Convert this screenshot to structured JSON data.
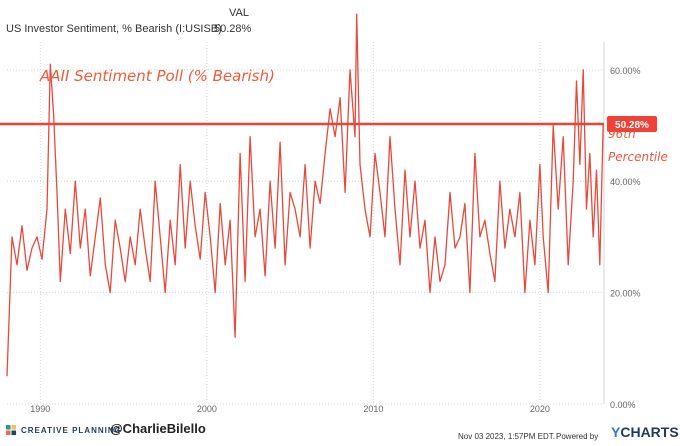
{
  "header": {
    "column_label": "VAL",
    "series_name": "US Investor Sentiment, % Bearish (I:USISB)",
    "series_value": "50.28%"
  },
  "annotations": {
    "title": "AAII Sentiment Poll (% Bearish)",
    "percentile_line1": "96th",
    "percentile_line2": "Percentile",
    "last_value_badge": "50.28%"
  },
  "footer": {
    "brand": "CREATIVE PLANNING",
    "handle": "@CharlieBilello",
    "timestamp": "Nov 03 2023, 1:57PM EDT.",
    "powered_by": "Powered by",
    "provider": "YCHARTS"
  },
  "colors": {
    "series": "#e8493b",
    "annotation": "#f05a3c",
    "grid": "#d6d6d6",
    "axis_text": "#666666",
    "badge_bg": "#ef4136",
    "badge_text": "#ffffff"
  },
  "icons": {
    "brand_logo": "creative-planning-logo-icon"
  },
  "chart_data": {
    "type": "line",
    "title": "AAII Sentiment Poll (% Bearish)",
    "xlabel": "",
    "ylabel": "",
    "xlim": [
      1988.0,
      2023.85
    ],
    "ylim": [
      0,
      65
    ],
    "x_ticks": [
      1990,
      2000,
      2010,
      2020
    ],
    "x_tick_labels": [
      "1990",
      "2000",
      "2010",
      "2020"
    ],
    "y_ticks": [
      0,
      20,
      40,
      60
    ],
    "y_tick_labels": [
      "0.00%",
      "20.00%",
      "40.00%",
      "60.00%"
    ],
    "grid": true,
    "reference_line": {
      "value": 50.28,
      "label": "96th Percentile"
    },
    "last_value": 50.28,
    "series": [
      {
        "name": "US Investor Sentiment, % Bearish",
        "x": [
          1988.0,
          1988.3,
          1988.6,
          1988.9,
          1989.2,
          1989.5,
          1989.8,
          1990.1,
          1990.4,
          1990.6,
          1990.8,
          1991.0,
          1991.2,
          1991.5,
          1991.8,
          1992.1,
          1992.4,
          1992.7,
          1993.0,
          1993.3,
          1993.6,
          1993.9,
          1994.2,
          1994.5,
          1994.8,
          1995.1,
          1995.4,
          1995.7,
          1996.0,
          1996.3,
          1996.6,
          1996.9,
          1997.2,
          1997.5,
          1997.8,
          1998.1,
          1998.4,
          1998.7,
          1999.0,
          1999.3,
          1999.6,
          1999.9,
          2000.2,
          2000.5,
          2000.8,
          2001.1,
          2001.4,
          2001.7,
          2002.0,
          2002.3,
          2002.6,
          2002.9,
          2003.2,
          2003.5,
          2003.8,
          2004.1,
          2004.4,
          2004.7,
          2005.0,
          2005.3,
          2005.6,
          2005.9,
          2006.2,
          2006.5,
          2006.8,
          2007.1,
          2007.4,
          2007.7,
          2008.0,
          2008.3,
          2008.6,
          2008.9,
          2009.0,
          2009.2,
          2009.5,
          2009.8,
          2010.1,
          2010.4,
          2010.7,
          2011.0,
          2011.3,
          2011.6,
          2011.9,
          2012.2,
          2012.5,
          2012.8,
          2013.1,
          2013.4,
          2013.7,
          2014.0,
          2014.3,
          2014.6,
          2014.9,
          2015.2,
          2015.5,
          2015.8,
          2016.1,
          2016.4,
          2016.7,
          2017.0,
          2017.3,
          2017.6,
          2017.9,
          2018.2,
          2018.5,
          2018.8,
          2019.1,
          2019.4,
          2019.7,
          2020.0,
          2020.2,
          2020.5,
          2020.8,
          2021.1,
          2021.4,
          2021.7,
          2022.0,
          2022.2,
          2022.4,
          2022.6,
          2022.8,
          2023.0,
          2023.2,
          2023.4,
          2023.6,
          2023.8
        ],
        "values": [
          5,
          30,
          25,
          32,
          24,
          28,
          30,
          26,
          35,
          61,
          52,
          38,
          22,
          35,
          27,
          40,
          28,
          35,
          23,
          30,
          37,
          25,
          20,
          33,
          28,
          22,
          30,
          25,
          35,
          28,
          22,
          40,
          30,
          20,
          33,
          25,
          43,
          28,
          40,
          32,
          26,
          38,
          30,
          20,
          36,
          25,
          33,
          12,
          45,
          22,
          48,
          30,
          35,
          23,
          40,
          28,
          47,
          25,
          38,
          35,
          30,
          43,
          28,
          40,
          36,
          45,
          53,
          48,
          55,
          38,
          60,
          48,
          70,
          43,
          35,
          30,
          45,
          38,
          30,
          48,
          35,
          25,
          42,
          30,
          40,
          28,
          33,
          20,
          30,
          22,
          25,
          38,
          28,
          30,
          36,
          20,
          45,
          30,
          33,
          27,
          22,
          40,
          28,
          35,
          30,
          38,
          20,
          33,
          25,
          43,
          30,
          20,
          50,
          35,
          48,
          25,
          40,
          58,
          43,
          60,
          35,
          45,
          30,
          42,
          25,
          50.28
        ]
      }
    ]
  }
}
